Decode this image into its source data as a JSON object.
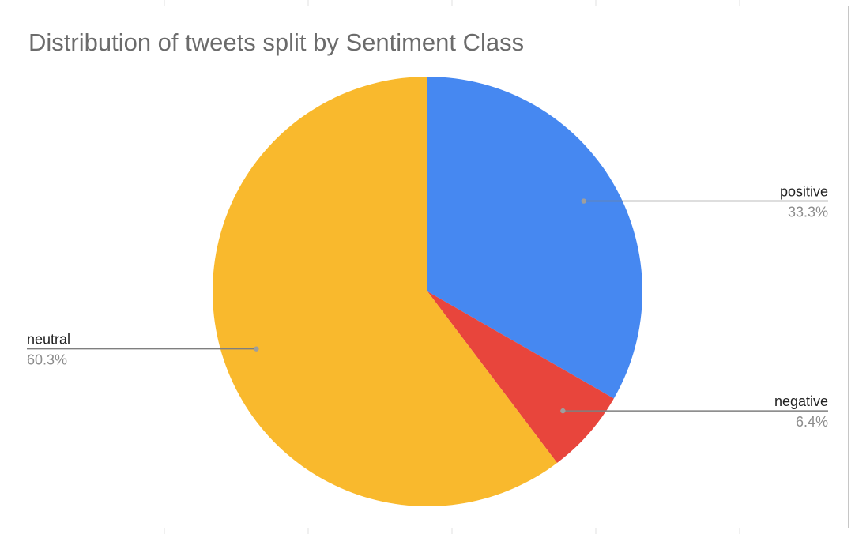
{
  "chart_data": {
    "type": "pie",
    "title": "Distribution of tweets split by Sentiment Class",
    "slices": [
      {
        "label": "positive",
        "value": 33.3,
        "display": "33.3%",
        "color": "#4688f1",
        "label_side": "right"
      },
      {
        "label": "negative",
        "value": 6.4,
        "display": "6.4%",
        "color": "#e8453c",
        "label_side": "right"
      },
      {
        "label": "neutral",
        "value": 60.3,
        "display": "60.3%",
        "color": "#f9b92d",
        "label_side": "left"
      }
    ],
    "start_angle": "12 o'clock",
    "direction": "clockwise",
    "legend": "none"
  }
}
